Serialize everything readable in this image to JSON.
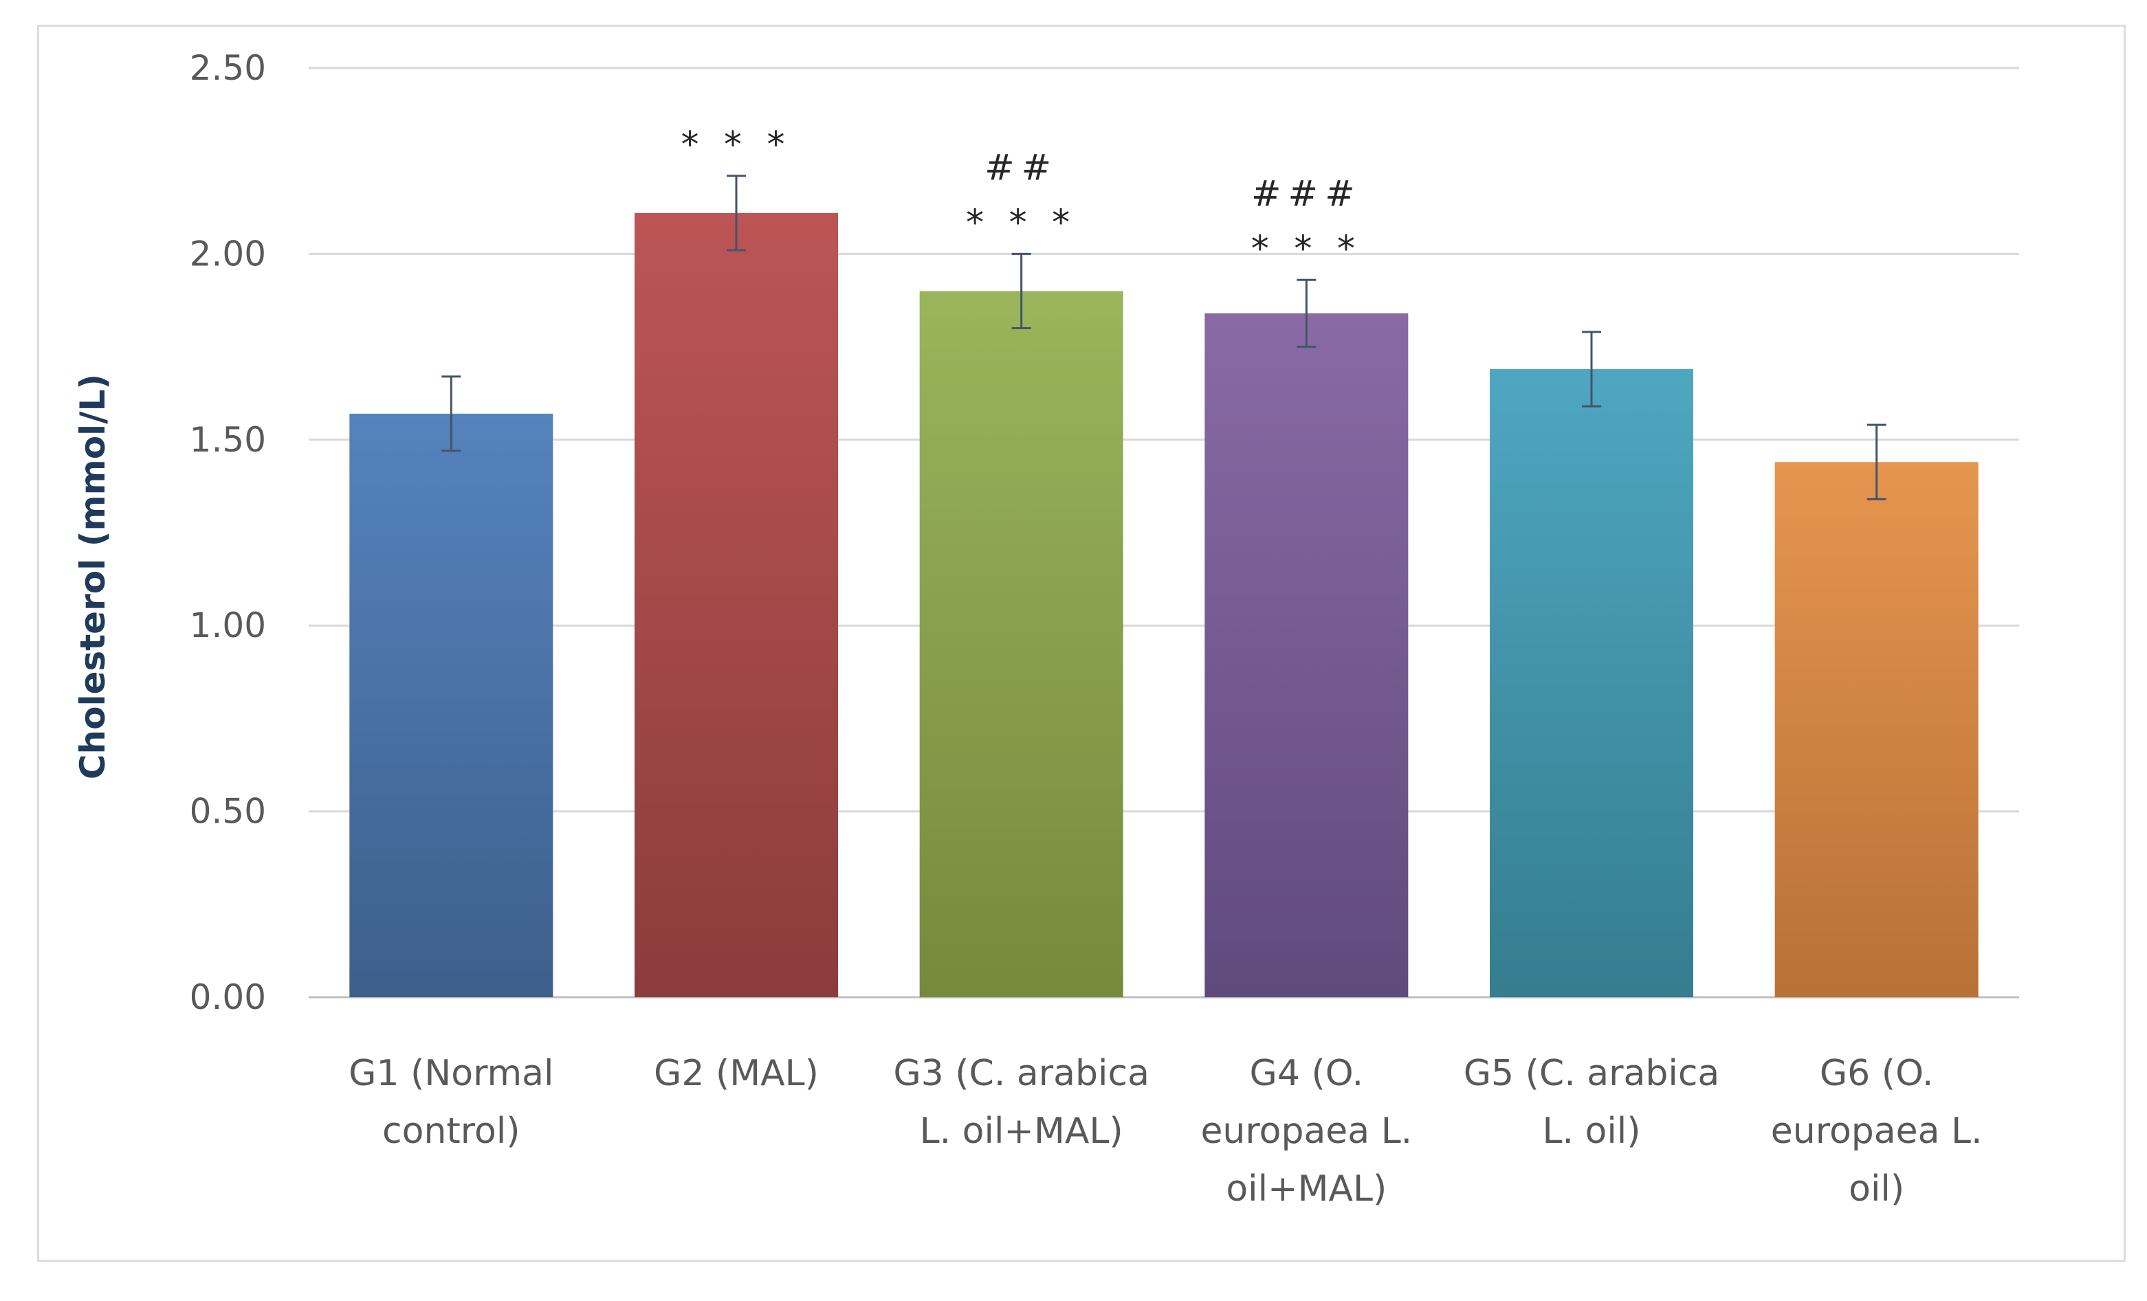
{
  "chart_data": {
    "type": "bar",
    "title": "",
    "xlabel": "",
    "ylabel": "Cholesterol (mmol/L)",
    "ylim": [
      0,
      2.5
    ],
    "yticks": [
      0.0,
      0.5,
      1.0,
      1.5,
      2.0,
      2.5
    ],
    "ytick_labels": [
      "0.00",
      "0.50",
      "1.00",
      "1.50",
      "2.00",
      "2.50"
    ],
    "grid": true,
    "legend": "none",
    "categories": [
      [
        "G1 (Normal",
        "control)"
      ],
      [
        "G2 (MAL)"
      ],
      [
        "G3 (C. arabica",
        "L. oil+MAL)"
      ],
      [
        "G4 (O.",
        "europaea L.",
        "oil+MAL)"
      ],
      [
        "G5 (C. arabica",
        "L. oil)"
      ],
      [
        "G6 (O.",
        "europaea L.",
        "oil)"
      ]
    ],
    "values": [
      1.57,
      2.11,
      1.9,
      1.84,
      1.69,
      1.44
    ],
    "errors": [
      0.1,
      0.1,
      0.1,
      0.09,
      0.1,
      0.1
    ],
    "significance": [
      [],
      [
        "* * *"
      ],
      [
        "##",
        "* * *"
      ],
      [
        "###",
        "* * *"
      ],
      [],
      []
    ],
    "colors": [
      [
        "#5583bd",
        "#3d5f8c"
      ],
      [
        "#bd5555",
        "#8b3c3c"
      ],
      [
        "#9ab55c",
        "#76893d"
      ],
      [
        "#8a6aa5",
        "#604a7c"
      ],
      [
        "#4ea7c0",
        "#357d8f"
      ],
      [
        "#e6954f",
        "#b87136"
      ]
    ],
    "error_bar_color": "#44546a",
    "grid_color": "#d9d9d9"
  }
}
